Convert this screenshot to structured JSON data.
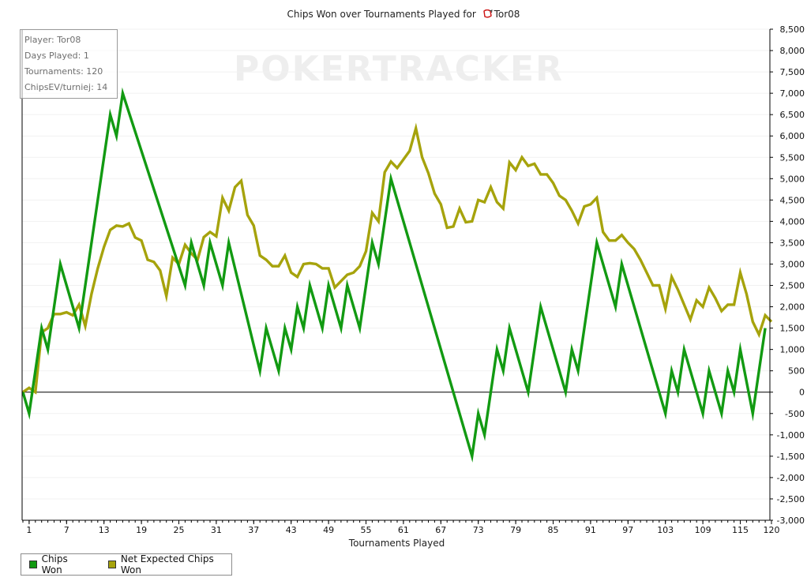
{
  "chart_data": {
    "type": "line",
    "title_prefix": "Chips Won over Tournaments Played for",
    "title_player": "Tor08",
    "xlabel": "Tournaments Played",
    "ylabel": "",
    "watermark": "POKERTRACKER",
    "xlim": [
      0,
      120
    ],
    "ylim": [
      -3000,
      8500
    ],
    "x_ticks": [
      1,
      7,
      13,
      19,
      25,
      31,
      37,
      43,
      49,
      55,
      61,
      67,
      73,
      79,
      85,
      91,
      97,
      103,
      109,
      115,
      120
    ],
    "y_ticks": [
      -3000,
      -2500,
      -2000,
      -1500,
      -1000,
      -500,
      0,
      500,
      1000,
      1500,
      2000,
      2500,
      3000,
      3500,
      4000,
      4500,
      5000,
      5500,
      6000,
      6500,
      7000,
      7500,
      8000,
      8500
    ],
    "y_tick_labels": [
      "-3,000",
      "-2,500",
      "-2,000",
      "-1,500",
      "-1,000",
      "-500",
      "0",
      "500",
      "1,000",
      "1,500",
      "2,000",
      "2,500",
      "3,000",
      "3,500",
      "4,000",
      "4,500",
      "5,000",
      "5,500",
      "6,000",
      "6,500",
      "7,000",
      "7,500",
      "8,000",
      "8,500"
    ],
    "grid": true,
    "legend_position": "bottom-left",
    "series": [
      {
        "name": "Chips Won",
        "color": "#129a12",
        "points": [
          [
            0,
            0
          ],
          [
            1,
            -500
          ],
          [
            2,
            500
          ],
          [
            3,
            1500
          ],
          [
            4,
            1000
          ],
          [
            5,
            2000
          ],
          [
            6,
            3000
          ],
          [
            9,
            1500
          ],
          [
            10,
            2500
          ],
          [
            14,
            6500
          ],
          [
            15,
            6000
          ],
          [
            16,
            7000
          ],
          [
            26,
            2500
          ],
          [
            27,
            3500
          ],
          [
            29,
            2500
          ],
          [
            30,
            3500
          ],
          [
            32,
            2500
          ],
          [
            33,
            3500
          ],
          [
            38,
            500
          ],
          [
            39,
            1500
          ],
          [
            41,
            500
          ],
          [
            42,
            1500
          ],
          [
            43,
            1000
          ],
          [
            44,
            2000
          ],
          [
            45,
            1500
          ],
          [
            46,
            2500
          ],
          [
            48,
            1500
          ],
          [
            49,
            2500
          ],
          [
            51,
            1500
          ],
          [
            52,
            2500
          ],
          [
            54,
            1500
          ],
          [
            56,
            3500
          ],
          [
            57,
            3000
          ],
          [
            59,
            5000
          ],
          [
            72,
            -1500
          ],
          [
            73,
            -500
          ],
          [
            74,
            -1000
          ],
          [
            76,
            1000
          ],
          [
            77,
            500
          ],
          [
            78,
            1500
          ],
          [
            81,
            0
          ],
          [
            83,
            2000
          ],
          [
            87,
            0
          ],
          [
            88,
            1000
          ],
          [
            89,
            500
          ],
          [
            92,
            3500
          ],
          [
            95,
            2000
          ],
          [
            96,
            3000
          ],
          [
            103,
            -500
          ],
          [
            104,
            500
          ],
          [
            105,
            0
          ],
          [
            106,
            1000
          ],
          [
            109,
            -500
          ],
          [
            110,
            500
          ],
          [
            112,
            -500
          ],
          [
            113,
            500
          ],
          [
            114,
            0
          ],
          [
            115,
            1000
          ],
          [
            117,
            -500
          ],
          [
            119,
            1500
          ]
        ]
      },
      {
        "name": "Net Expected Chips Won",
        "color": "#a6a30c",
        "points": [
          [
            0,
            0
          ],
          [
            1,
            100
          ],
          [
            2,
            0
          ],
          [
            3,
            1400
          ],
          [
            4,
            1500
          ],
          [
            5,
            1830
          ],
          [
            6,
            1830
          ],
          [
            7,
            1870
          ],
          [
            8,
            1800
          ],
          [
            9,
            2050
          ],
          [
            10,
            1550
          ],
          [
            11,
            2300
          ],
          [
            12,
            2900
          ],
          [
            13,
            3400
          ],
          [
            14,
            3800
          ],
          [
            15,
            3900
          ],
          [
            16,
            3880
          ],
          [
            17,
            3950
          ],
          [
            18,
            3620
          ],
          [
            19,
            3550
          ],
          [
            20,
            3100
          ],
          [
            21,
            3050
          ],
          [
            22,
            2850
          ],
          [
            23,
            2250
          ],
          [
            24,
            3150
          ],
          [
            25,
            3000
          ],
          [
            26,
            3450
          ],
          [
            27,
            3250
          ],
          [
            28,
            3100
          ],
          [
            29,
            3630
          ],
          [
            30,
            3750
          ],
          [
            31,
            3650
          ],
          [
            32,
            4550
          ],
          [
            33,
            4250
          ],
          [
            34,
            4800
          ],
          [
            35,
            4950
          ],
          [
            36,
            4150
          ],
          [
            37,
            3900
          ],
          [
            38,
            3200
          ],
          [
            39,
            3100
          ],
          [
            40,
            2950
          ],
          [
            41,
            2950
          ],
          [
            42,
            3200
          ],
          [
            43,
            2800
          ],
          [
            44,
            2700
          ],
          [
            45,
            3000
          ],
          [
            46,
            3020
          ],
          [
            47,
            3000
          ],
          [
            48,
            2900
          ],
          [
            49,
            2900
          ],
          [
            50,
            2450
          ],
          [
            51,
            2600
          ],
          [
            52,
            2750
          ],
          [
            53,
            2800
          ],
          [
            54,
            2950
          ],
          [
            55,
            3300
          ],
          [
            56,
            4200
          ],
          [
            57,
            4000
          ],
          [
            58,
            5150
          ],
          [
            59,
            5400
          ],
          [
            60,
            5250
          ],
          [
            61,
            5450
          ],
          [
            62,
            5650
          ],
          [
            63,
            6180
          ],
          [
            64,
            5500
          ],
          [
            65,
            5130
          ],
          [
            66,
            4650
          ],
          [
            67,
            4400
          ],
          [
            68,
            3850
          ],
          [
            69,
            3880
          ],
          [
            70,
            4300
          ],
          [
            71,
            3980
          ],
          [
            72,
            4000
          ],
          [
            73,
            4500
          ],
          [
            74,
            4450
          ],
          [
            75,
            4800
          ],
          [
            76,
            4450
          ],
          [
            77,
            4300
          ],
          [
            78,
            5380
          ],
          [
            79,
            5200
          ],
          [
            80,
            5500
          ],
          [
            81,
            5300
          ],
          [
            82,
            5350
          ],
          [
            83,
            5100
          ],
          [
            84,
            5100
          ],
          [
            85,
            4900
          ],
          [
            86,
            4600
          ],
          [
            87,
            4500
          ],
          [
            88,
            4250
          ],
          [
            89,
            3950
          ],
          [
            90,
            4350
          ],
          [
            91,
            4400
          ],
          [
            92,
            4550
          ],
          [
            93,
            3750
          ],
          [
            94,
            3550
          ],
          [
            95,
            3550
          ],
          [
            96,
            3680
          ],
          [
            97,
            3500
          ],
          [
            98,
            3350
          ],
          [
            99,
            3100
          ],
          [
            100,
            2800
          ],
          [
            101,
            2500
          ],
          [
            102,
            2500
          ],
          [
            103,
            1950
          ],
          [
            104,
            2700
          ],
          [
            105,
            2400
          ],
          [
            106,
            2050
          ],
          [
            107,
            1700
          ],
          [
            108,
            2150
          ],
          [
            109,
            2000
          ],
          [
            110,
            2450
          ],
          [
            111,
            2200
          ],
          [
            112,
            1900
          ],
          [
            113,
            2050
          ],
          [
            114,
            2050
          ],
          [
            115,
            2800
          ],
          [
            116,
            2300
          ],
          [
            117,
            1650
          ],
          [
            118,
            1350
          ],
          [
            119,
            1800
          ],
          [
            120,
            1650
          ]
        ]
      }
    ]
  },
  "infobox": {
    "player": "Player: Tor08",
    "days": "Days Played: 1",
    "tournaments": "Tournaments: 120",
    "chipsev": "ChipsEV/turniej: 14"
  },
  "legend": {
    "items": [
      {
        "label": "Chips Won",
        "color": "#129a12"
      },
      {
        "label": "Net Expected Chips Won",
        "color": "#a6a30c"
      }
    ]
  }
}
